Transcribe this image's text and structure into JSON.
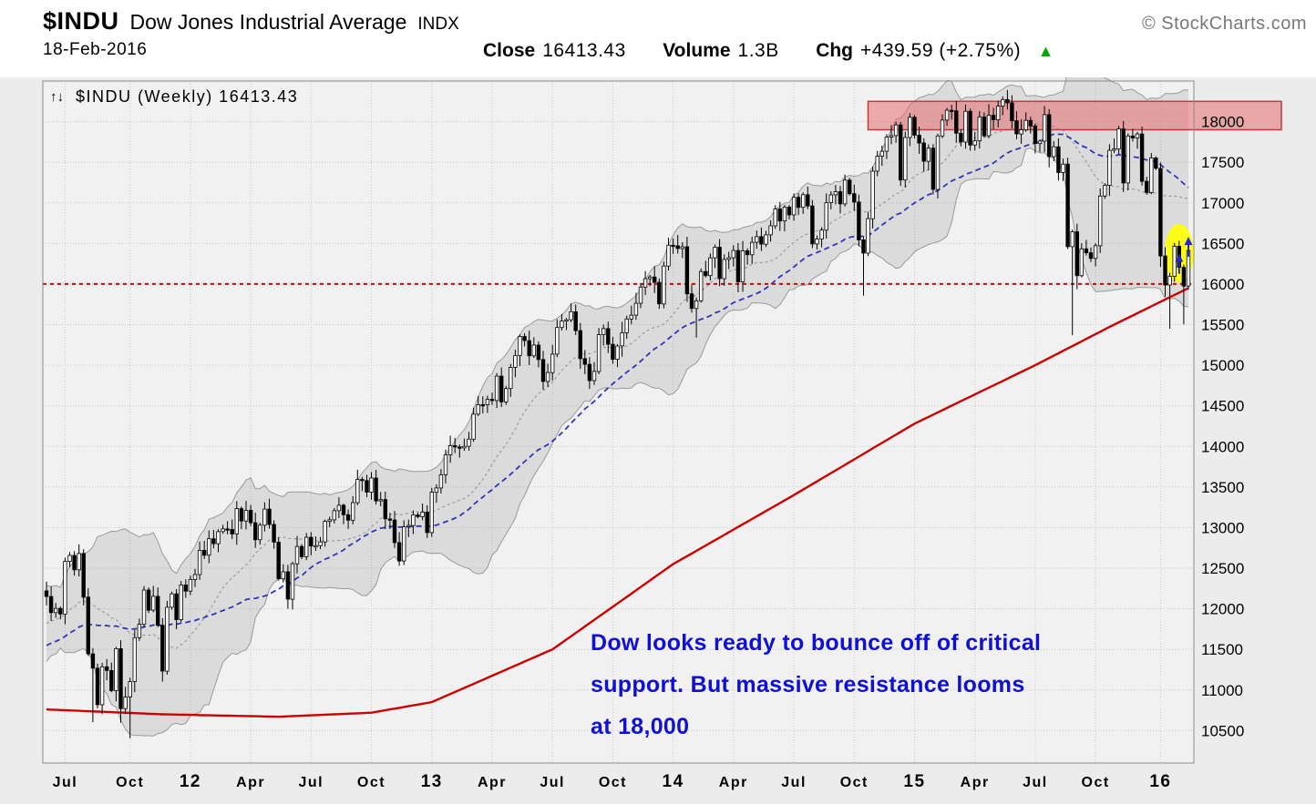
{
  "header": {
    "symbol": "$INDU",
    "name": "Dow Jones Industrial Average",
    "exchange": "INDX",
    "watermark": "© StockCharts.com",
    "date": "18-Feb-2016",
    "close_label": "Close",
    "close_value": "16413.43",
    "volume_label": "Volume",
    "volume_value": "1.3B",
    "chg_label": "Chg",
    "chg_value": "+439.59 (+2.75%)",
    "direction_icon": "▲",
    "up_color": "#00a800"
  },
  "chart_data": {
    "type": "candlestick",
    "title": "$INDU (Weekly) 16413.43",
    "overlay_label": "$INDU (Weekly) 16413.43",
    "toggle_icon": "↑↓",
    "timeframe": "Weekly",
    "ylim": [
      10100,
      18500
    ],
    "grid": true,
    "yticks": [
      10500,
      11000,
      11500,
      12000,
      12500,
      13000,
      13500,
      14000,
      14500,
      15000,
      15500,
      16000,
      16500,
      17000,
      17500,
      18000
    ],
    "x_labels": [
      {
        "label": "Jul",
        "index": 4
      },
      {
        "label": "Oct",
        "index": 18
      },
      {
        "label": "12",
        "index": 31,
        "bold": true
      },
      {
        "label": "Apr",
        "index": 44
      },
      {
        "label": "Jul",
        "index": 57
      },
      {
        "label": "Oct",
        "index": 70
      },
      {
        "label": "13",
        "index": 83,
        "bold": true
      },
      {
        "label": "Apr",
        "index": 96
      },
      {
        "label": "Jul",
        "index": 109
      },
      {
        "label": "Oct",
        "index": 122
      },
      {
        "label": "14",
        "index": 135,
        "bold": true
      },
      {
        "label": "Apr",
        "index": 148
      },
      {
        "label": "Jul",
        "index": 161
      },
      {
        "label": "Oct",
        "index": 174
      },
      {
        "label": "15",
        "index": 187,
        "bold": true
      },
      {
        "label": "Apr",
        "index": 200
      },
      {
        "label": "Jul",
        "index": 213
      },
      {
        "label": "Oct",
        "index": 226
      },
      {
        "label": "16",
        "index": 240,
        "bold": true
      }
    ],
    "weekly_closes": [
      12151,
      11952,
      12004,
      11935,
      12583,
      12657,
      12480,
      12681,
      12143,
      11445,
      11269,
      10818,
      11285,
      11240,
      10992,
      11509,
      10771,
      10913,
      11103,
      11644,
      11809,
      12231,
      11983,
      12153,
      11796,
      11232,
      12019,
      12184,
      11866,
      12294,
      12218,
      12360,
      12422,
      12720,
      12660,
      12862,
      12801,
      12950,
      12983,
      12978,
      12922,
      13233,
      13081,
      13212,
      13060,
      12850,
      13029,
      13228,
      13038,
      12821,
      12369,
      12455,
      12118,
      12554,
      12767,
      12641,
      12880,
      12772,
      12777,
      12823,
      13076,
      13096,
      13208,
      13275,
      13158,
      13091,
      13307,
      13593,
      13579,
      13437,
      13610,
      13329,
      13344,
      13107,
      13093,
      12815,
      12588,
      13010,
      13026,
      13155,
      13135,
      13191,
      12938,
      13435,
      13488,
      13650,
      13896,
      14010,
      13993,
      13982,
      14001,
      14090,
      14397,
      14514,
      14512,
      14579,
      14565,
      14865,
      14548,
      14713,
      14974,
      15118,
      15354,
      15303,
      15116,
      15248,
      15070,
      14799,
      14910,
      15136,
      15464,
      15544,
      15559,
      15658,
      15426,
      15081,
      15011,
      14810,
      14923,
      15376,
      15451,
      15258,
      15073,
      15237,
      15400,
      15570,
      15616,
      15762,
      15962,
      16065,
      16086,
      16020,
      15755,
      16221,
      16478,
      16470,
      16437,
      16459,
      15879,
      15699,
      15794,
      16154,
      16103,
      16322,
      16453,
      16066,
      16303,
      16323,
      16413,
      16027,
      16409,
      16361,
      16513,
      16583,
      16491,
      16606,
      16717,
      16924,
      16776,
      16947,
      16852,
      17068,
      16944,
      17100,
      16961,
      16493,
      16554,
      16663,
      17001,
      17098,
      17137,
      16987,
      17280,
      17113,
      17010,
      16544,
      16380,
      16805,
      17390,
      17574,
      17635,
      17810,
      17828,
      17959,
      17281,
      17805,
      18054,
      17833,
      17737,
      17512,
      17673,
      17165,
      17824,
      18019,
      18140,
      18133,
      17857,
      17749,
      18128,
      17712,
      17763,
      18058,
      17826,
      18080,
      18024,
      18191,
      18272,
      18232,
      18011,
      17849,
      17899,
      18016,
      17947,
      17730,
      17760,
      18086,
      17569,
      17690,
      17373,
      17477,
      16460,
      16643,
      16102,
      16433,
      16385,
      16315,
      16472,
      17084,
      17216,
      17647,
      17664,
      17910,
      17245,
      17824,
      17798,
      17848,
      17265,
      17128,
      17552,
      17425,
      16346,
      15988,
      16094,
      16466,
      16205,
      15974,
      16413
    ],
    "low_overrides": {
      "10": 10604,
      "16": 10597,
      "18": 10404,
      "140": 15340,
      "176": 15855,
      "221": 15370,
      "222": 15936,
      "241": 15842,
      "242": 15450,
      "245": 15503
    },
    "high_overrides": {
      "206": 18312
    },
    "candle_color": "#000000",
    "bollinger_band": {
      "color": "#9a9a9a",
      "fill": "rgba(120,120,120,0.18)"
    },
    "ma_medium": {
      "style": "dashed",
      "color": "#3333bb"
    },
    "ma_long": {
      "style": "solid",
      "color": "#cc0000",
      "anchors": [
        [
          0,
          10760
        ],
        [
          25,
          10700
        ],
        [
          50,
          10670
        ],
        [
          70,
          10720
        ],
        [
          83,
          10850
        ],
        [
          109,
          11500
        ],
        [
          135,
          12550
        ],
        [
          161,
          13400
        ],
        [
          187,
          14280
        ],
        [
          213,
          15000
        ],
        [
          230,
          15500
        ],
        [
          246,
          15950
        ]
      ]
    },
    "support_level": 16000,
    "support_color": "#dd0000",
    "resistance_zone": {
      "from": 17900,
      "to": 18250,
      "start_index": 177,
      "fill": "rgba(231,110,110,0.55)",
      "border": "#c23b3b"
    },
    "highlight": {
      "index": 244,
      "value": 16380,
      "color": "#ffff00"
    },
    "up_arrow_indexes": [
      244,
      246
    ],
    "arrow_color": "#2626cc",
    "annotation": {
      "color": "#0f0fd6",
      "lines": [
        "Dow looks ready to bounce off of critical",
        "support. But massive resistance looms",
        "at 18,000"
      ]
    }
  }
}
